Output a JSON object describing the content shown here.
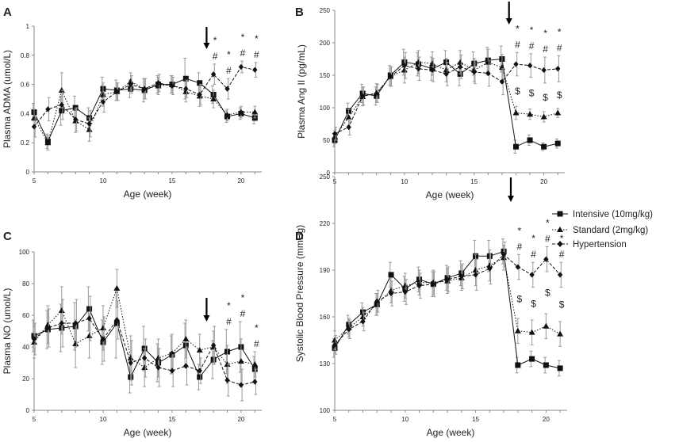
{
  "chart_data": [
    {
      "type": "line",
      "panel_label": "A",
      "xlabel": "Age (week)",
      "ylabel": "Plasma ADMA (umol/L)",
      "xlim": [
        5,
        21.5
      ],
      "ylim": [
        0,
        1
      ],
      "xticks": [
        5,
        10,
        15,
        20
      ],
      "yticks": [
        0,
        0.2,
        0.4,
        0.6,
        0.8,
        1
      ],
      "ytick_labels": [
        "0",
        "0.2",
        "0.4",
        "0.6",
        "0.8",
        "1"
      ],
      "x": [
        5,
        6,
        7,
        8,
        9,
        10,
        11,
        12,
        13,
        14,
        15,
        16,
        17,
        18,
        19,
        20,
        21
      ],
      "series": [
        {
          "name": "Intensive (10mg/kg)",
          "values": [
            0.41,
            0.21,
            0.42,
            0.44,
            0.37,
            0.57,
            0.56,
            0.57,
            0.56,
            0.6,
            0.6,
            0.64,
            0.61,
            0.53,
            0.38,
            0.4,
            0.37
          ],
          "errors": [
            0.06,
            0.05,
            0.1,
            0.08,
            0.07,
            0.08,
            0.07,
            0.06,
            0.08,
            0.06,
            0.06,
            0.14,
            0.07,
            0.06,
            0.04,
            0.04,
            0.04
          ]
        },
        {
          "name": "Standard (2mg/kg)",
          "values": [
            0.37,
            0.2,
            0.56,
            0.35,
            0.29,
            0.53,
            0.55,
            0.62,
            0.57,
            0.59,
            0.6,
            0.55,
            0.52,
            0.5,
            0.39,
            0.41,
            0.41
          ],
          "errors": [
            0.06,
            0.05,
            0.12,
            0.08,
            0.08,
            0.08,
            0.06,
            0.06,
            0.07,
            0.06,
            0.06,
            0.07,
            0.07,
            0.06,
            0.04,
            0.04,
            0.04
          ]
        },
        {
          "name": "Hypertension",
          "values": [
            0.31,
            0.43,
            0.46,
            0.36,
            0.33,
            0.48,
            0.55,
            0.6,
            0.57,
            0.61,
            0.59,
            0.57,
            0.53,
            0.67,
            0.57,
            0.72,
            0.7
          ],
          "errors": [
            0.07,
            0.08,
            0.1,
            0.08,
            0.09,
            0.07,
            0.06,
            0.06,
            0.07,
            0.06,
            0.06,
            0.06,
            0.07,
            0.07,
            0.07,
            0.04,
            0.05
          ]
        }
      ],
      "arrow_at_x": 17.5,
      "annotations": [
        {
          "x": 18,
          "symbols": [
            "*",
            "#"
          ]
        },
        {
          "x": 19,
          "symbols": [
            "*",
            "#"
          ]
        },
        {
          "x": 20,
          "symbols": [
            "*",
            "#"
          ]
        },
        {
          "x": 21,
          "symbols": [
            "*",
            "#"
          ]
        }
      ]
    },
    {
      "type": "line",
      "panel_label": "B",
      "xlabel": "Age (week)",
      "ylabel": "Plasma Ang II (pg/mL)",
      "xlim": [
        5,
        21.5
      ],
      "ylim": [
        0,
        250
      ],
      "xticks": [
        5,
        10,
        15,
        20
      ],
      "yticks": [
        0,
        50,
        100,
        150,
        200,
        250
      ],
      "ytick_labels": [
        "0",
        "50",
        "100",
        "150",
        "200",
        "250"
      ],
      "x": [
        5,
        6,
        7,
        8,
        9,
        10,
        11,
        12,
        13,
        14,
        15,
        16,
        17,
        18,
        19,
        20,
        21
      ],
      "series": [
        {
          "name": "Intensive (10mg/kg)",
          "values": [
            50,
            95,
            122,
            118,
            150,
            170,
            167,
            160,
            170,
            152,
            168,
            173,
            175,
            40,
            50,
            40,
            45
          ],
          "errors": [
            10,
            12,
            14,
            14,
            15,
            20,
            18,
            18,
            18,
            18,
            18,
            20,
            20,
            10,
            8,
            6,
            7
          ]
        },
        {
          "name": "Standard (2mg/kg)",
          "values": [
            55,
            85,
            117,
            123,
            148,
            158,
            170,
            168,
            158,
            170,
            158,
            170,
            162,
            92,
            90,
            86,
            92
          ],
          "errors": [
            10,
            12,
            14,
            14,
            15,
            20,
            18,
            18,
            18,
            18,
            18,
            20,
            20,
            10,
            8,
            8,
            7
          ]
        },
        {
          "name": "Hypertension",
          "values": [
            60,
            70,
            118,
            122,
            148,
            165,
            160,
            158,
            152,
            163,
            155,
            153,
            140,
            167,
            165,
            158,
            160
          ],
          "errors": [
            10,
            12,
            14,
            14,
            15,
            20,
            18,
            18,
            18,
            18,
            18,
            20,
            20,
            18,
            18,
            20,
            20
          ]
        }
      ],
      "arrow_at_x": 17.5,
      "annotations": [
        {
          "x": 18,
          "symbols": [
            "*",
            "#",
            "$"
          ]
        },
        {
          "x": 19,
          "symbols": [
            "*",
            "#",
            "$"
          ]
        },
        {
          "x": 20,
          "symbols": [
            "*",
            "#",
            "$"
          ]
        },
        {
          "x": 21,
          "symbols": [
            "*",
            "#",
            "$"
          ]
        }
      ]
    },
    {
      "type": "line",
      "panel_label": "C",
      "xlabel": "Age (week)",
      "ylabel": "Plasma NO (umol/L)",
      "xlim": [
        5,
        21.5
      ],
      "ylim": [
        0,
        100
      ],
      "xticks": [
        5,
        10,
        15,
        20
      ],
      "yticks": [
        0,
        20,
        40,
        60,
        80,
        100
      ],
      "ytick_labels": [
        "0",
        "20",
        "40",
        "60",
        "80",
        "100"
      ],
      "x": [
        5,
        6,
        7,
        8,
        9,
        10,
        11,
        12,
        13,
        14,
        15,
        16,
        17,
        18,
        19,
        20,
        21
      ],
      "series": [
        {
          "name": "Intensive (10mg/kg)",
          "values": [
            47,
            51,
            52,
            53,
            64,
            43,
            55,
            21,
            39,
            30,
            35,
            41,
            21,
            32,
            37,
            40,
            26
          ],
          "errors": [
            10,
            12,
            15,
            15,
            14,
            14,
            22,
            10,
            14,
            12,
            12,
            14,
            8,
            12,
            14,
            16,
            8
          ]
        },
        {
          "name": "Standard (2mg/kg)",
          "values": [
            43,
            54,
            63,
            42,
            47,
            52,
            77,
            33,
            27,
            33,
            36,
            45,
            38,
            40,
            29,
            31,
            29
          ],
          "errors": [
            10,
            12,
            15,
            15,
            14,
            14,
            12,
            14,
            12,
            12,
            12,
            12,
            10,
            10,
            12,
            14,
            8
          ]
        },
        {
          "name": "Hypertension",
          "values": [
            45,
            52,
            55,
            55,
            58,
            45,
            57,
            30,
            33,
            27,
            25,
            28,
            25,
            41,
            19,
            16,
            18
          ],
          "errors": [
            10,
            12,
            15,
            15,
            14,
            14,
            12,
            14,
            12,
            12,
            10,
            12,
            8,
            12,
            10,
            10,
            8
          ]
        }
      ],
      "arrow_at_x": 17.5,
      "annotations": [
        {
          "x": 19,
          "symbols": [
            "*",
            "#"
          ]
        },
        {
          "x": 20,
          "symbols": [
            "*",
            "#"
          ]
        },
        {
          "x": 21,
          "symbols": [
            "*",
            "#"
          ]
        }
      ]
    },
    {
      "type": "line",
      "panel_label": "D",
      "xlabel": "Age (week)",
      "ylabel": "Systolic Blood Pressure (mmHg)",
      "xlim": [
        5,
        21.5
      ],
      "ylim": [
        100,
        250
      ],
      "xticks": [
        5,
        10,
        15,
        20
      ],
      "yticks": [
        100,
        130,
        160,
        190,
        220,
        250
      ],
      "ytick_labels": [
        "100",
        "130",
        "160",
        "190",
        "220",
        "250"
      ],
      "x": [
        5,
        6,
        7,
        8,
        9,
        10,
        11,
        12,
        13,
        14,
        15,
        16,
        17,
        18,
        19,
        20,
        21
      ],
      "series": [
        {
          "name": "Intensive (10mg/kg)",
          "values": [
            140,
            155,
            163,
            168,
            187,
            178,
            184,
            181,
            185,
            188,
            199,
            199,
            202,
            129,
            133,
            129,
            127
          ],
          "errors": [
            6,
            6,
            6,
            7,
            8,
            8,
            8,
            8,
            8,
            8,
            10,
            10,
            8,
            5,
            5,
            5,
            5
          ]
        },
        {
          "name": "Standard (2mg/kg)",
          "values": [
            145,
            153,
            160,
            168,
            177,
            180,
            182,
            182,
            183,
            185,
            190,
            193,
            198,
            151,
            150,
            154,
            149
          ],
          "errors": [
            6,
            6,
            6,
            7,
            8,
            8,
            8,
            8,
            8,
            8,
            10,
            10,
            8,
            8,
            8,
            8,
            8
          ]
        },
        {
          "name": "Hypertension",
          "values": [
            142,
            152,
            157,
            170,
            175,
            176,
            180,
            181,
            184,
            186,
            187,
            191,
            200,
            192,
            187,
            197,
            187
          ],
          "errors": [
            6,
            6,
            6,
            7,
            8,
            8,
            8,
            8,
            8,
            8,
            10,
            10,
            8,
            8,
            8,
            8,
            8
          ]
        }
      ],
      "arrow_at_x": 17.5,
      "annotations": [
        {
          "x": 18,
          "symbols": [
            "*",
            "#",
            "$"
          ]
        },
        {
          "x": 19,
          "symbols": [
            "*",
            "#",
            "$"
          ]
        },
        {
          "x": 20,
          "symbols": [
            "*",
            "#",
            "$"
          ]
        },
        {
          "x": 21,
          "symbols": [
            "*",
            "#",
            "$"
          ]
        }
      ]
    }
  ],
  "legend": {
    "placement": "right",
    "items": [
      {
        "name": "Intensive (10mg/kg)",
        "marker": "square",
        "dash": "solid"
      },
      {
        "name": "Standard (2mg/kg)",
        "marker": "triangle",
        "dash": "dotted"
      },
      {
        "name": "Hypertension",
        "marker": "diamond",
        "dash": "dashed"
      }
    ]
  },
  "colors": {
    "intensive": "#111111",
    "standard": "#111111",
    "hypertension": "#111111",
    "error_bar": "#999999",
    "axis": "#888888"
  }
}
